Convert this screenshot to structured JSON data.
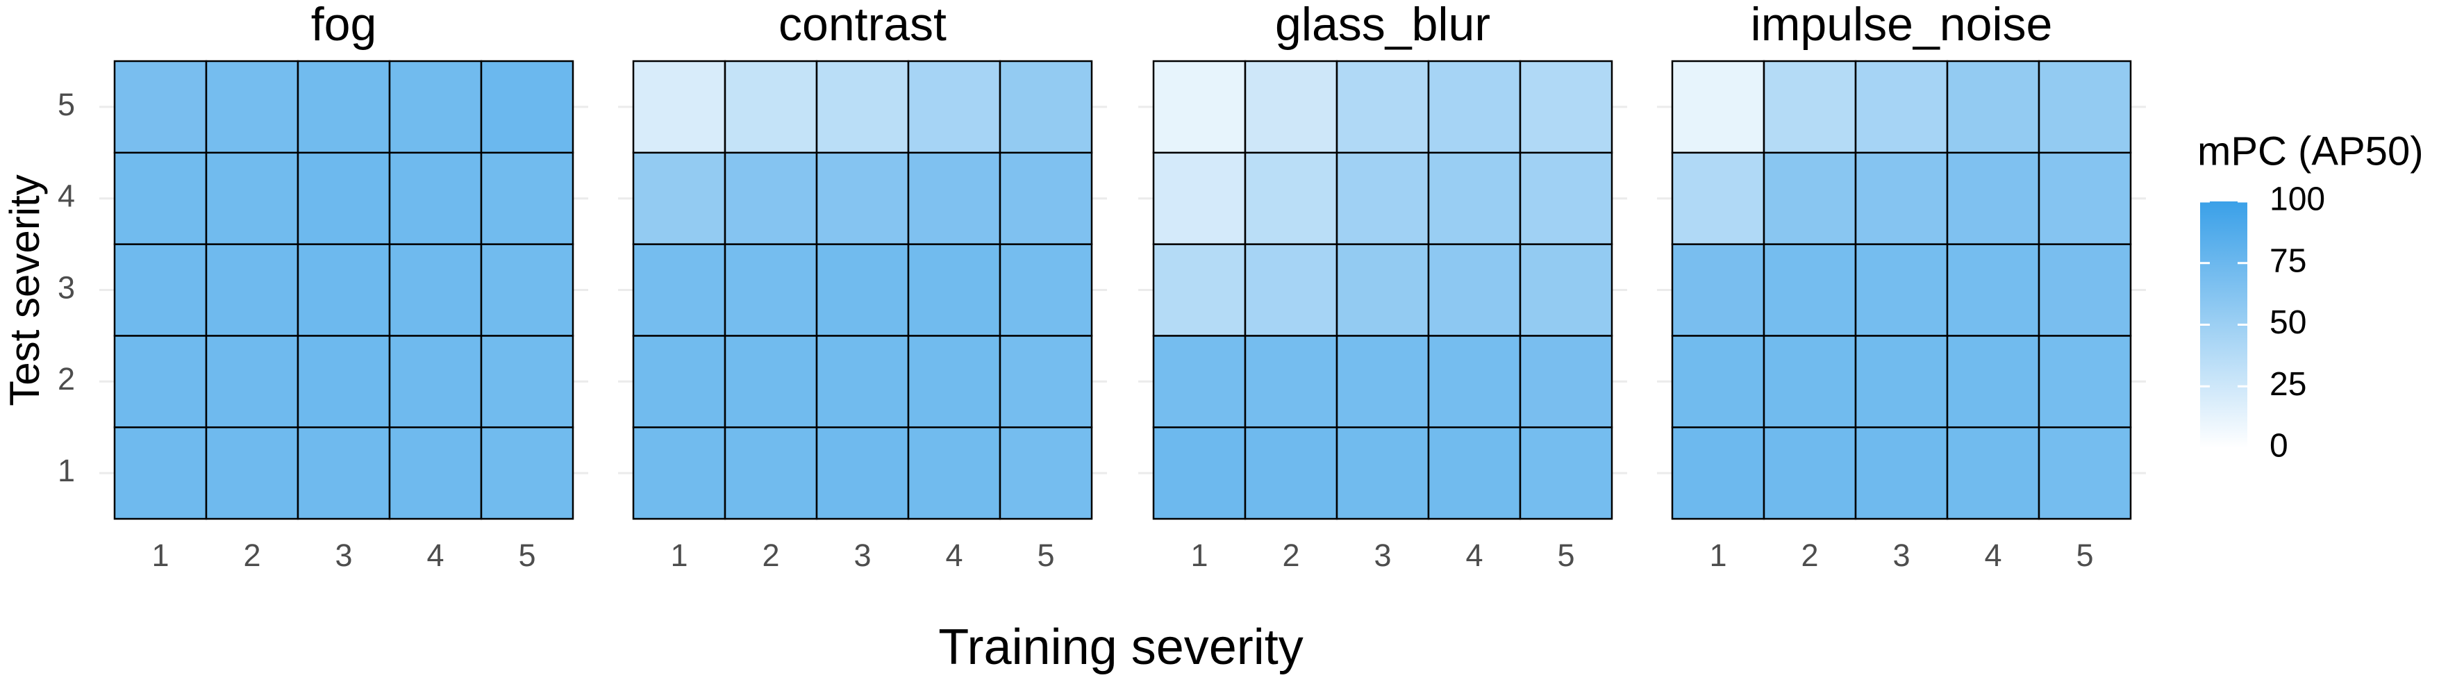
{
  "chart_data": {
    "type": "heatmap",
    "xlabel": "Training severity",
    "ylabel": "Test severity",
    "x": [
      1,
      2,
      3,
      4,
      5
    ],
    "y": [
      1,
      2,
      3,
      4,
      5
    ],
    "colorbar_title": "mPC (AP50)",
    "clim": [
      0,
      100
    ],
    "colorbar_ticks": [
      0,
      25,
      50,
      75,
      100
    ],
    "colormap": [
      "#ffffff",
      "#3aa0e8"
    ],
    "grid": true,
    "panels": [
      {
        "title": "fog",
        "values": [
          [
            73,
            73,
            73,
            73,
            72
          ],
          [
            73,
            73,
            74,
            73,
            72
          ],
          [
            73,
            73,
            74,
            73,
            72
          ],
          [
            72,
            72,
            74,
            73,
            72
          ],
          [
            68,
            70,
            72,
            72,
            75
          ]
        ]
      },
      {
        "title": "contrast",
        "values": [
          [
            72,
            72,
            73,
            72,
            70
          ],
          [
            72,
            72,
            72,
            72,
            70
          ],
          [
            70,
            70,
            72,
            72,
            70
          ],
          [
            55,
            62,
            62,
            65,
            65
          ],
          [
            20,
            30,
            35,
            45,
            55
          ]
        ]
      },
      {
        "title": "glass_blur",
        "values": [
          [
            74,
            73,
            72,
            72,
            70
          ],
          [
            70,
            70,
            70,
            70,
            68
          ],
          [
            38,
            45,
            55,
            58,
            55
          ],
          [
            22,
            35,
            48,
            52,
            48
          ],
          [
            12,
            25,
            40,
            45,
            40
          ]
        ]
      },
      {
        "title": "impulse_noise",
        "values": [
          [
            74,
            73,
            73,
            72,
            70
          ],
          [
            72,
            72,
            72,
            72,
            70
          ],
          [
            68,
            70,
            70,
            70,
            68
          ],
          [
            40,
            60,
            62,
            65,
            62
          ],
          [
            12,
            38,
            45,
            55,
            55
          ]
        ]
      }
    ]
  }
}
